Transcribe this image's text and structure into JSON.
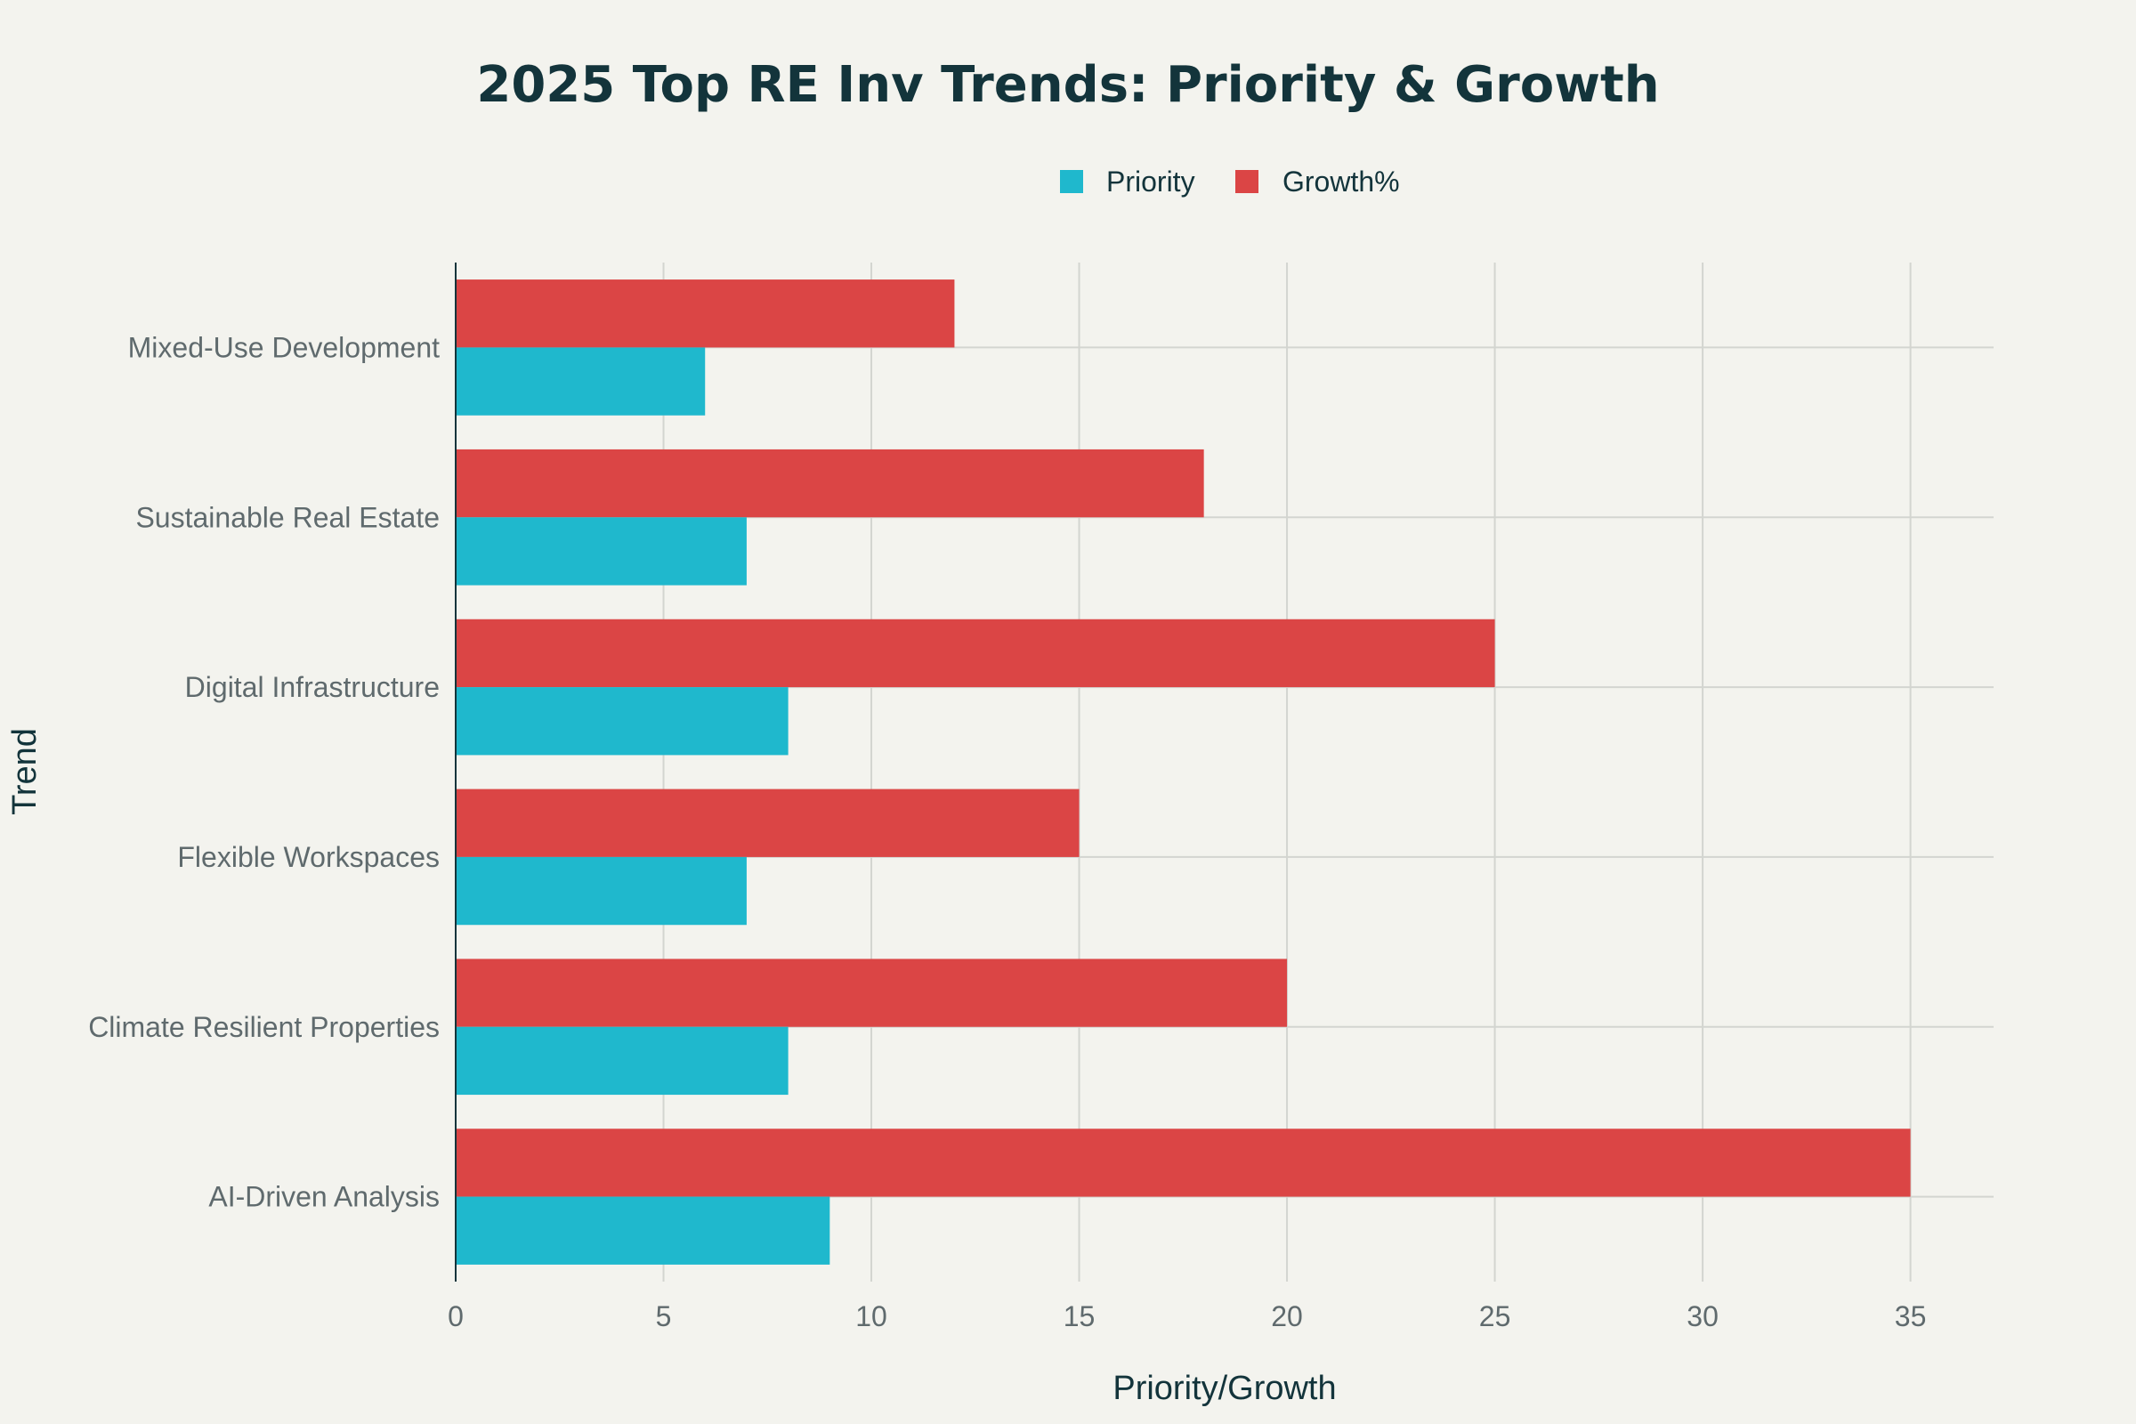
{
  "chart_data": {
    "type": "bar",
    "orientation": "horizontal",
    "title": "2025 Top RE Inv Trends: Priority & Growth",
    "xlabel": "Priority/Growth",
    "ylabel": "Trend",
    "xlim": [
      0,
      37
    ],
    "xticks": [
      0,
      5,
      10,
      15,
      20,
      25,
      30,
      35
    ],
    "grid": true,
    "legend_position": "top-center",
    "categories": [
      "AI-Driven Analysis",
      "Climate Resilient Properties",
      "Flexible Workspaces",
      "Digital Infrastructure",
      "Sustainable Real Estate",
      "Mixed-Use Development"
    ],
    "series": [
      {
        "name": "Priority",
        "color": "#1FB8CD",
        "values": [
          9,
          8,
          7,
          8,
          7,
          6
        ]
      },
      {
        "name": "Growth%",
        "color": "#DB4545",
        "values": [
          35,
          20,
          15,
          25,
          18,
          12
        ]
      }
    ]
  }
}
